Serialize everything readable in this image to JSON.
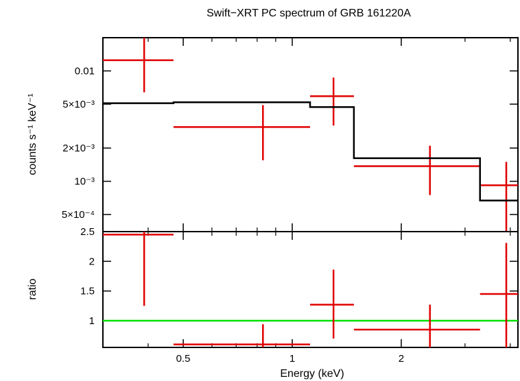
{
  "chart_data": [
    {
      "type": "scatter",
      "panel": "top",
      "title": "Swift−XRT PC spectrum of GRB 161220A",
      "xlabel": "",
      "ylabel": "counts s⁻¹ keV⁻¹",
      "x_scale": "log",
      "y_scale": "log",
      "xlim": [
        0.3,
        4.2
      ],
      "ylim": [
        0.00035,
        0.02
      ],
      "yticks": [
        {
          "value": 0.01,
          "label": "0.01"
        },
        {
          "value": 0.005,
          "label": "5×10⁻³"
        },
        {
          "value": 0.002,
          "label": "2×10⁻³"
        },
        {
          "value": 0.001,
          "label": "10⁻³"
        },
        {
          "value": 0.0005,
          "label": "5×10⁻⁴"
        }
      ],
      "series": [
        {
          "kind": "data",
          "color": "#e00000",
          "points": [
            {
              "x": 0.39,
              "xlo": 0.3,
              "xhi": 0.47,
              "y": 0.0125,
              "ylo": 0.0064,
              "yhi": 0.02
            },
            {
              "x": 0.83,
              "xlo": 0.47,
              "xhi": 1.12,
              "y": 0.0031,
              "ylo": 0.00155,
              "yhi": 0.0049
            },
            {
              "x": 1.3,
              "xlo": 1.12,
              "xhi": 1.48,
              "y": 0.0059,
              "ylo": 0.0032,
              "yhi": 0.0087
            },
            {
              "x": 2.4,
              "xlo": 1.48,
              "xhi": 3.3,
              "y": 0.00137,
              "ylo": 0.00075,
              "yhi": 0.0021
            },
            {
              "x": 3.9,
              "xlo": 3.3,
              "xhi": 4.2,
              "y": 0.00092,
              "ylo": 0.00035,
              "yhi": 0.0015
            }
          ]
        },
        {
          "kind": "model",
          "color": "#000000",
          "steps": [
            {
              "xlo": 0.3,
              "xhi": 0.47,
              "y": 0.0051
            },
            {
              "xlo": 0.47,
              "xhi": 1.12,
              "y": 0.0052
            },
            {
              "xlo": 1.12,
              "xhi": 1.48,
              "y": 0.0047
            },
            {
              "xlo": 1.48,
              "xhi": 3.3,
              "y": 0.00162
            },
            {
              "xlo": 3.3,
              "xhi": 4.2,
              "y": 0.00067
            }
          ]
        }
      ]
    },
    {
      "type": "scatter",
      "panel": "bottom",
      "xlabel": "Energy (keV)",
      "ylabel": "ratio",
      "x_scale": "log",
      "y_scale": "linear",
      "xlim": [
        0.3,
        4.2
      ],
      "ylim": [
        0.55,
        2.5
      ],
      "xticks": [
        {
          "value": 0.5,
          "label": "0.5"
        },
        {
          "value": 1,
          "label": "1"
        },
        {
          "value": 2,
          "label": "2"
        }
      ],
      "yticks": [
        {
          "value": 2.5,
          "label": "2.5"
        },
        {
          "value": 2,
          "label": "2"
        },
        {
          "value": 1.5,
          "label": "1.5"
        },
        {
          "value": 1,
          "label": "1"
        }
      ],
      "reference_line": {
        "y": 1,
        "color": "#00e000"
      },
      "series": [
        {
          "kind": "data",
          "color": "#e00000",
          "points": [
            {
              "x": 0.39,
              "xlo": 0.3,
              "xhi": 0.47,
              "y": 2.45,
              "ylo": 1.25,
              "yhi": 2.5
            },
            {
              "x": 0.83,
              "xlo": 0.47,
              "xhi": 1.12,
              "y": 0.6,
              "ylo": 0.55,
              "yhi": 0.94
            },
            {
              "x": 1.3,
              "xlo": 1.12,
              "xhi": 1.48,
              "y": 1.27,
              "ylo": 0.7,
              "yhi": 1.86
            },
            {
              "x": 2.4,
              "xlo": 1.48,
              "xhi": 3.3,
              "y": 0.85,
              "ylo": 0.55,
              "yhi": 1.27
            },
            {
              "x": 3.9,
              "xlo": 3.3,
              "xhi": 4.2,
              "y": 1.45,
              "ylo": 0.55,
              "yhi": 2.31
            }
          ]
        }
      ]
    }
  ]
}
